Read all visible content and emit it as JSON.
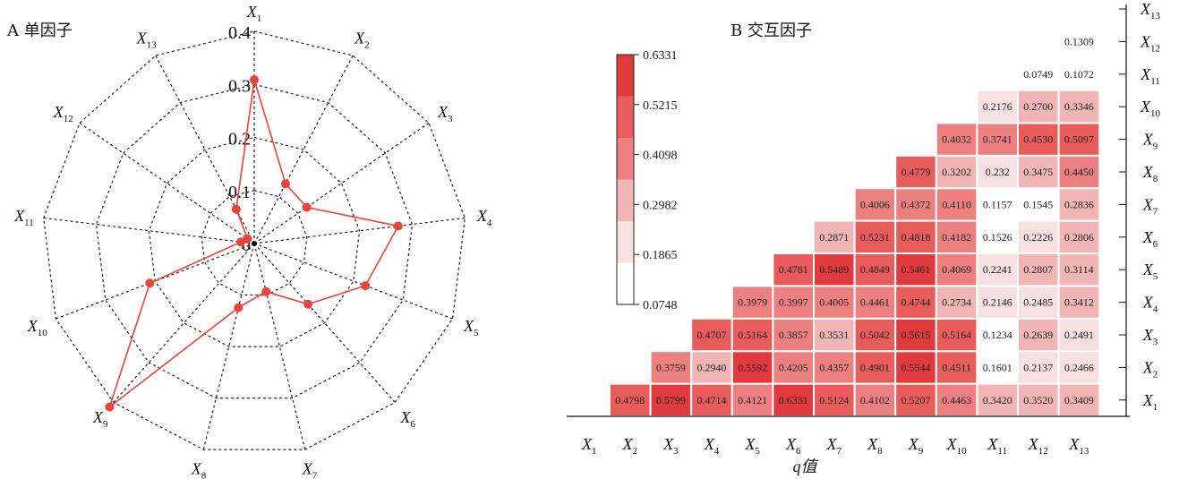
{
  "chart_data": [
    {
      "type": "radar",
      "panel_label": "A 单因子",
      "axes": [
        "X1",
        "X2",
        "X3",
        "X4",
        "X5",
        "X6",
        "X7",
        "X8",
        "X9",
        "X10",
        "X11",
        "X12",
        "X13"
      ],
      "radial_ticks": [
        "0",
        "0.1",
        "0.2",
        "0.3",
        "0.4"
      ],
      "rlim": [
        0,
        0.4
      ],
      "grid": true,
      "series": [
        {
          "values": [
            0.3087,
            0.1272,
            0.1204,
            0.2734,
            0.224,
            0.1529,
            0.0936,
            0.1245,
            0.4114,
            0.2107,
            0.0252,
            0.0156,
            0.073
          ],
          "color": "#e8443c"
        }
      ]
    },
    {
      "type": "heatmap",
      "panel_label": "B 交互因子",
      "x_categories": [
        "X1",
        "X2",
        "X3",
        "X4",
        "X5",
        "X6",
        "X7",
        "X8",
        "X9",
        "X10",
        "X11",
        "X12",
        "X13"
      ],
      "y_categories": [
        "X1",
        "X2",
        "X3",
        "X4",
        "X5",
        "X6",
        "X7",
        "X8",
        "X9",
        "X10",
        "X11",
        "X12",
        "X13"
      ],
      "xlabel": "q值",
      "rows": [
        {
          "y": "X1",
          "values": [
            null,
            "0.4798",
            "0.5799",
            "0.4714",
            "0.4121",
            "0.6331",
            "0.5124",
            "0.4102",
            "0.5207",
            "0.4463",
            "0.3420",
            "0.3520",
            "0.3409"
          ]
        },
        {
          "y": "X2",
          "values": [
            null,
            null,
            "0.3759",
            "0.2940",
            "0.5592",
            "0.4205",
            "0.4357",
            "0.4901",
            "0.5544",
            "0.4511",
            "0.1601",
            "0.2137",
            "0.2466"
          ]
        },
        {
          "y": "X3",
          "values": [
            null,
            null,
            null,
            "0.4707",
            "0.5164",
            "0.3857",
            "0.3531",
            "0.5042",
            "0.5615",
            "0.5164",
            "0.1234",
            "0.2639",
            "0.2491"
          ]
        },
        {
          "y": "X4",
          "values": [
            null,
            null,
            null,
            null,
            "0.3979",
            "0.3997",
            "0.4005",
            "0.4461",
            "0.4744",
            "0.2734",
            "0.2146",
            "0.2485",
            "0.3412"
          ]
        },
        {
          "y": "X5",
          "values": [
            null,
            null,
            null,
            null,
            null,
            "0.4781",
            "0.5489",
            "0.4849",
            "0.5461",
            "0.4069",
            "0.2241",
            "0.2807",
            "0.3114"
          ]
        },
        {
          "y": "X6",
          "values": [
            null,
            null,
            null,
            null,
            null,
            null,
            "0.2871",
            "0.5231",
            "0.4818",
            "0.4182",
            "0.1526",
            "0.2226",
            "0.2806"
          ]
        },
        {
          "y": "X7",
          "values": [
            null,
            null,
            null,
            null,
            null,
            null,
            null,
            "0.4006",
            "0.4372",
            "0.4110",
            "0.1157",
            "0.1545",
            "0.2836"
          ]
        },
        {
          "y": "X8",
          "values": [
            null,
            null,
            null,
            null,
            null,
            null,
            null,
            null,
            "0.4779",
            "0.3202",
            "0.232",
            "0.3475",
            "0.4450"
          ]
        },
        {
          "y": "X9",
          "values": [
            null,
            null,
            null,
            null,
            null,
            null,
            null,
            null,
            null,
            "0.4032",
            "0.3741",
            "0.4530",
            "0.5097"
          ]
        },
        {
          "y": "X10",
          "values": [
            null,
            null,
            null,
            null,
            null,
            null,
            null,
            null,
            null,
            null,
            "0.2176",
            "0.2700",
            "0.3346"
          ]
        },
        {
          "y": "X11",
          "values": [
            null,
            null,
            null,
            null,
            null,
            null,
            null,
            null,
            null,
            null,
            null,
            "0.0749",
            "0.1072"
          ]
        },
        {
          "y": "X12",
          "values": [
            null,
            null,
            null,
            null,
            null,
            null,
            null,
            null,
            null,
            null,
            null,
            null,
            "0.1309"
          ]
        },
        {
          "y": "X13",
          "values": [
            null,
            null,
            null,
            null,
            null,
            null,
            null,
            null,
            null,
            null,
            null,
            null,
            null
          ]
        }
      ],
      "colorbar": {
        "ticks": [
          "0.6331",
          "0.5215",
          "0.4098",
          "0.2982",
          "0.1865",
          "0.0748"
        ],
        "vmin": 0.0748,
        "vmax": 0.6331,
        "colors": [
          "#ffffff",
          "#f6e0e0",
          "#f2b5b5",
          "#ec8080",
          "#e85c5c",
          "#e03a3e"
        ]
      }
    }
  ]
}
